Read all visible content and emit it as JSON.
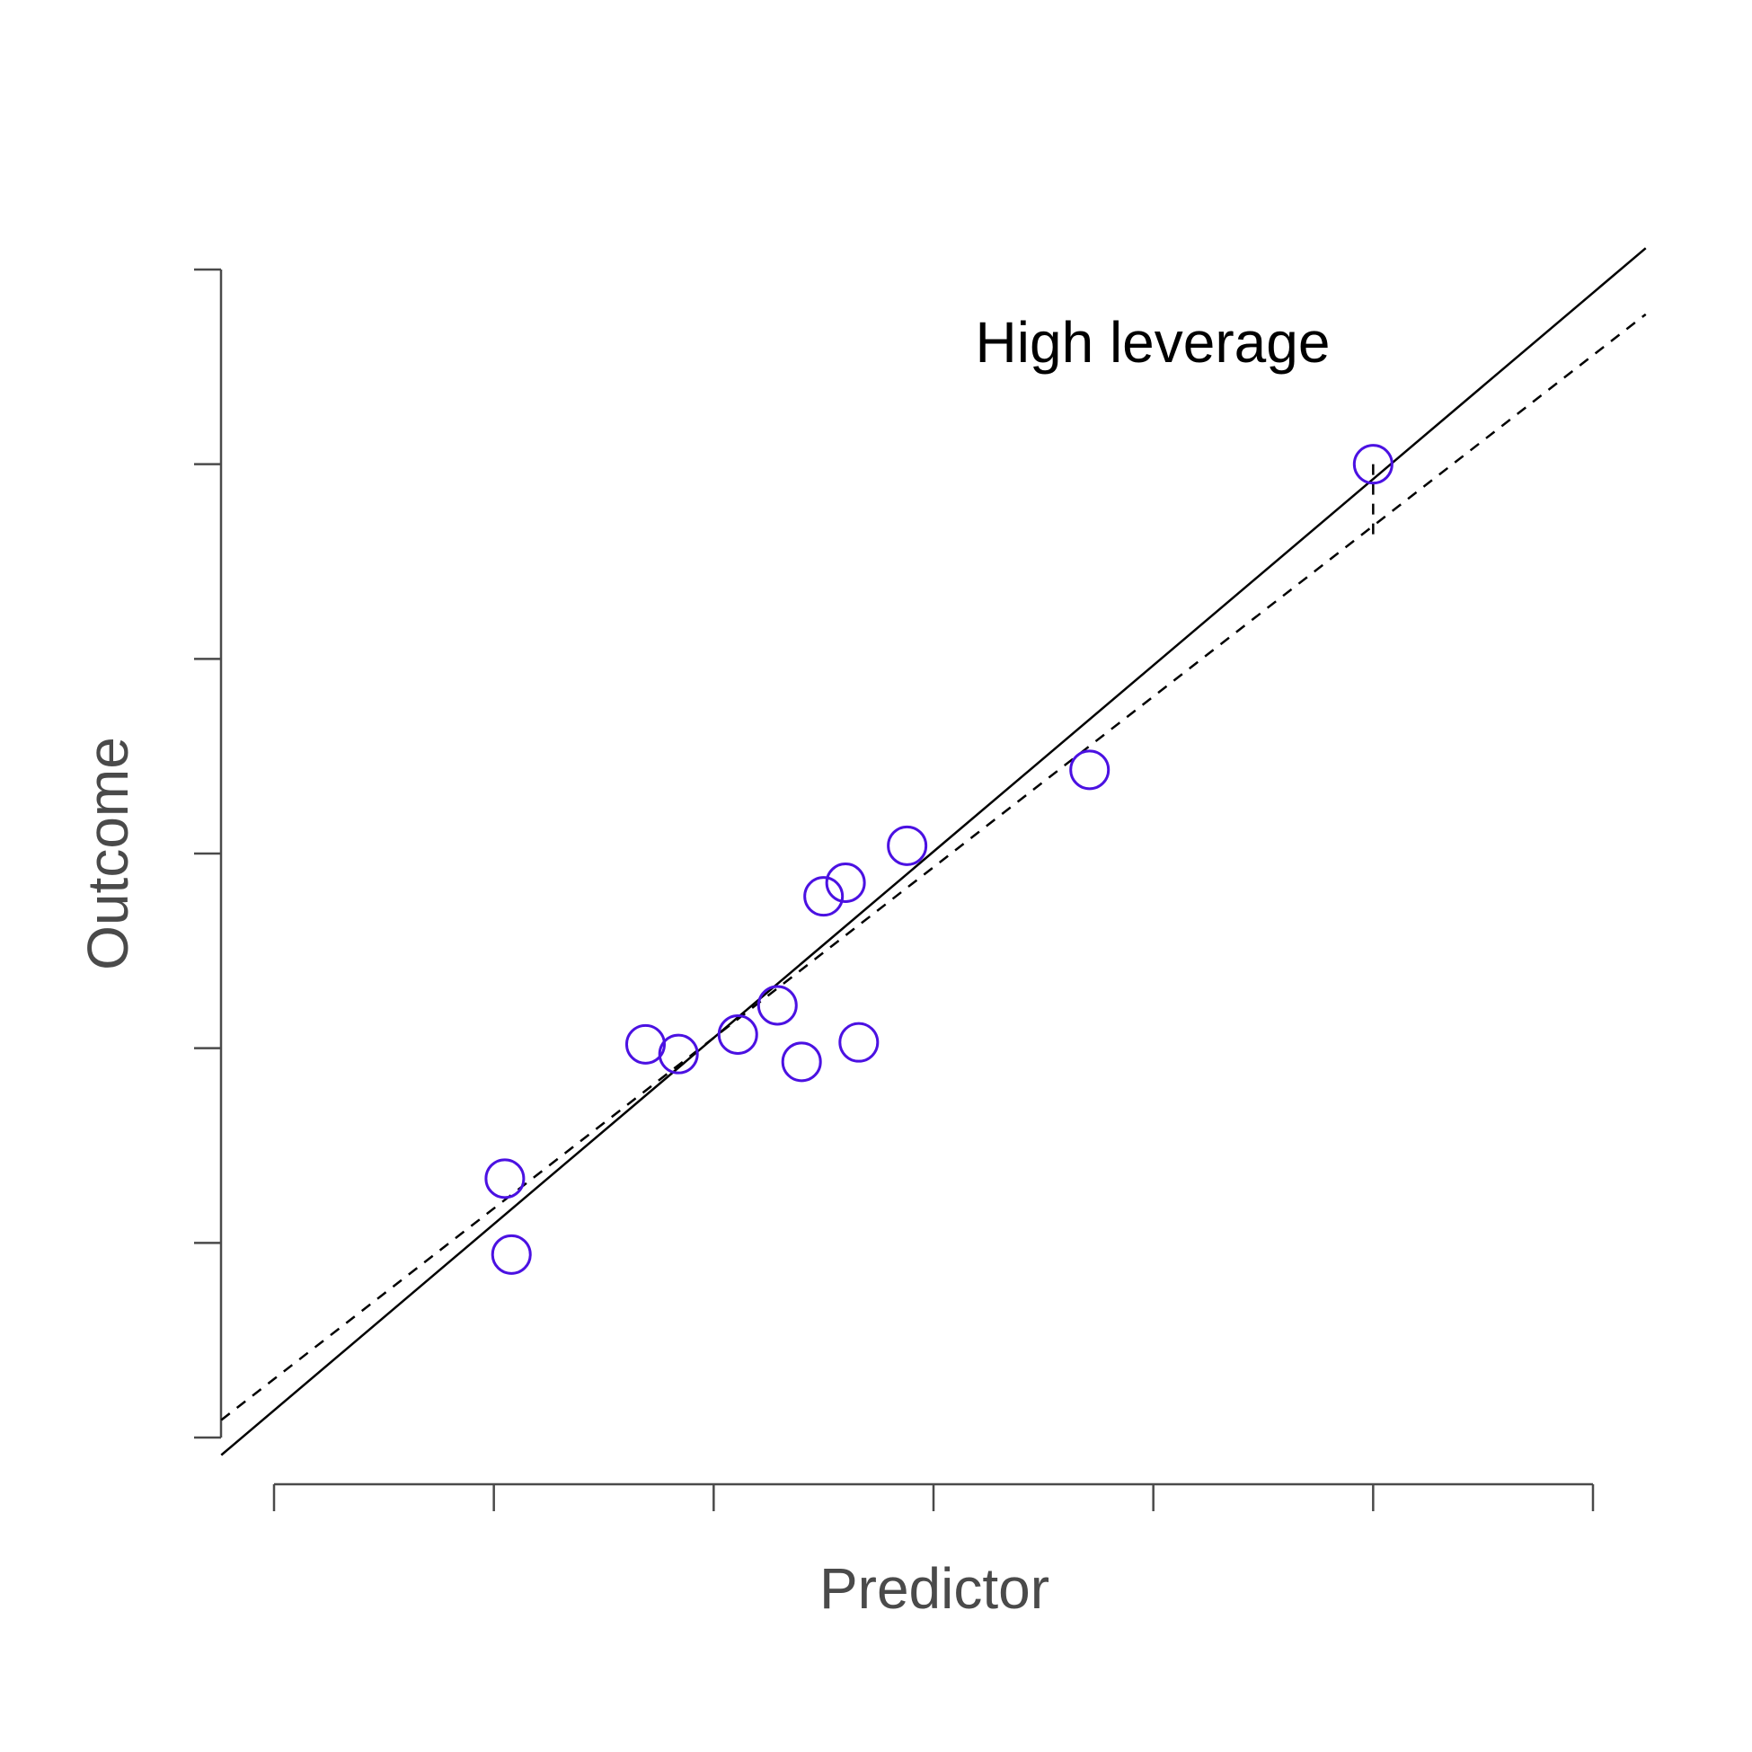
{
  "chart_data": {
    "type": "scatter",
    "title": "",
    "xlabel": "Predictor",
    "ylabel": "Outcome",
    "annotation": "High leverage",
    "xlim": [
      0,
      6
    ],
    "ylim": [
      0,
      6
    ],
    "x_ticks": [
      0,
      1,
      2,
      3,
      4,
      5,
      6
    ],
    "y_ticks": [
      0,
      1,
      2,
      3,
      4,
      5,
      6
    ],
    "tick_labels_shown": false,
    "grid": false,
    "point_color": "#4B11E2",
    "points": [
      {
        "x": 1.05,
        "y": 1.33
      },
      {
        "x": 1.08,
        "y": 0.94
      },
      {
        "x": 1.69,
        "y": 2.02
      },
      {
        "x": 1.84,
        "y": 1.97
      },
      {
        "x": 2.11,
        "y": 2.07
      },
      {
        "x": 2.29,
        "y": 2.22
      },
      {
        "x": 2.4,
        "y": 1.93
      },
      {
        "x": 2.5,
        "y": 2.78
      },
      {
        "x": 2.6,
        "y": 2.85
      },
      {
        "x": 2.66,
        "y": 2.03
      },
      {
        "x": 2.88,
        "y": 3.04
      },
      {
        "x": 3.71,
        "y": 3.43
      },
      {
        "x": 5.0,
        "y": 5.0
      }
    ],
    "lines": [
      {
        "style": "solid",
        "x": [
          -0.24,
          6.24
        ],
        "y": [
          -0.09,
          6.11
        ]
      },
      {
        "style": "dashed",
        "x": [
          -0.24,
          6.24
        ],
        "y": [
          0.09,
          5.77
        ]
      }
    ],
    "residual_segment": {
      "x": 5.0,
      "y_from": 5.0,
      "y_to": 4.6,
      "style": "dashed"
    }
  }
}
